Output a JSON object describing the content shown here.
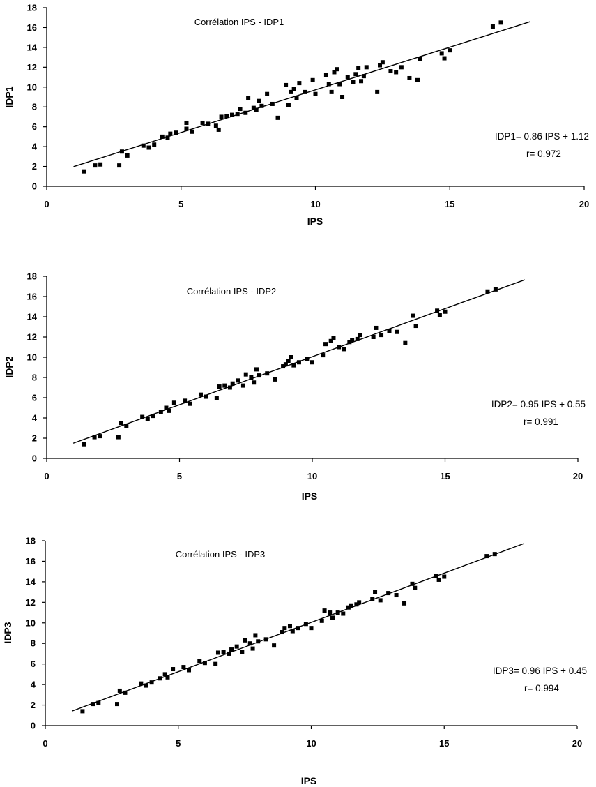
{
  "chart_data": [
    {
      "type": "scatter",
      "title": "Corrélation IPS - IDP1",
      "xlabel": "IPS",
      "ylabel": "IDP1",
      "xlim": [
        0,
        20
      ],
      "ylim": [
        0,
        18
      ],
      "xticks": [
        "0",
        "5",
        "10",
        "15",
        "20"
      ],
      "yticks": [
        "0",
        "2",
        "4",
        "6",
        "8",
        "10",
        "12",
        "14",
        "16",
        "18"
      ],
      "equation": "IDP1= 0.86 IPS + 1.12",
      "r_label": "r= 0.972",
      "fit": {
        "slope": 0.86,
        "intercept": 1.12,
        "x_range": [
          1,
          18
        ]
      },
      "points": [
        [
          1.4,
          1.5
        ],
        [
          1.8,
          2.1
        ],
        [
          2.0,
          2.2
        ],
        [
          2.7,
          2.1
        ],
        [
          2.8,
          3.5
        ],
        [
          3.0,
          3.1
        ],
        [
          3.6,
          4.1
        ],
        [
          3.8,
          3.9
        ],
        [
          4.0,
          4.2
        ],
        [
          4.3,
          5.0
        ],
        [
          4.5,
          4.9
        ],
        [
          4.6,
          5.3
        ],
        [
          4.8,
          5.4
        ],
        [
          5.2,
          6.4
        ],
        [
          5.2,
          5.8
        ],
        [
          5.4,
          5.5
        ],
        [
          5.8,
          6.4
        ],
        [
          6.0,
          6.3
        ],
        [
          6.3,
          6.1
        ],
        [
          6.4,
          5.7
        ],
        [
          6.5,
          7.0
        ],
        [
          6.7,
          7.1
        ],
        [
          6.9,
          7.2
        ],
        [
          7.1,
          7.3
        ],
        [
          7.2,
          7.8
        ],
        [
          7.4,
          7.4
        ],
        [
          7.5,
          8.9
        ],
        [
          7.7,
          7.9
        ],
        [
          7.8,
          7.7
        ],
        [
          7.9,
          8.6
        ],
        [
          8.0,
          8.1
        ],
        [
          8.2,
          9.3
        ],
        [
          8.4,
          8.3
        ],
        [
          8.6,
          6.9
        ],
        [
          8.9,
          10.2
        ],
        [
          9.0,
          8.2
        ],
        [
          9.1,
          9.5
        ],
        [
          9.2,
          9.8
        ],
        [
          9.3,
          8.9
        ],
        [
          9.4,
          10.4
        ],
        [
          9.6,
          9.5
        ],
        [
          9.9,
          10.7
        ],
        [
          10.0,
          9.3
        ],
        [
          10.4,
          11.2
        ],
        [
          10.5,
          10.3
        ],
        [
          10.6,
          9.5
        ],
        [
          10.7,
          11.5
        ],
        [
          10.8,
          11.8
        ],
        [
          10.9,
          10.3
        ],
        [
          11.0,
          9.0
        ],
        [
          11.2,
          11.0
        ],
        [
          11.4,
          10.5
        ],
        [
          11.5,
          11.3
        ],
        [
          11.6,
          11.9
        ],
        [
          11.7,
          10.6
        ],
        [
          11.8,
          11.1
        ],
        [
          11.9,
          12.0
        ],
        [
          12.3,
          9.5
        ],
        [
          12.4,
          12.2
        ],
        [
          12.5,
          12.5
        ],
        [
          12.8,
          11.6
        ],
        [
          13.0,
          11.5
        ],
        [
          13.2,
          12.0
        ],
        [
          13.5,
          10.9
        ],
        [
          13.8,
          10.7
        ],
        [
          13.9,
          12.8
        ],
        [
          14.7,
          13.4
        ],
        [
          14.8,
          12.9
        ],
        [
          15.0,
          13.7
        ],
        [
          16.6,
          16.1
        ],
        [
          16.9,
          16.5
        ]
      ]
    },
    {
      "type": "scatter",
      "title": "Corrélation IPS - IDP2",
      "xlabel": "IPS",
      "ylabel": "IDP2",
      "xlim": [
        0,
        20
      ],
      "ylim": [
        0,
        18
      ],
      "xticks": [
        "0",
        "5",
        "10",
        "15",
        "20"
      ],
      "yticks": [
        "0",
        "2",
        "4",
        "6",
        "8",
        "10",
        "12",
        "14",
        "16",
        "18"
      ],
      "equation": "IDP2= 0.95 IPS + 0.55",
      "r_label": "r= 0.991",
      "fit": {
        "slope": 0.95,
        "intercept": 0.55,
        "x_range": [
          1,
          18
        ]
      },
      "points": [
        [
          1.4,
          1.4
        ],
        [
          1.8,
          2.1
        ],
        [
          2.0,
          2.2
        ],
        [
          2.7,
          2.1
        ],
        [
          2.8,
          3.5
        ],
        [
          3.0,
          3.2
        ],
        [
          3.6,
          4.1
        ],
        [
          3.8,
          3.9
        ],
        [
          4.0,
          4.2
        ],
        [
          4.3,
          4.6
        ],
        [
          4.5,
          5.0
        ],
        [
          4.6,
          4.7
        ],
        [
          4.8,
          5.5
        ],
        [
          5.2,
          5.7
        ],
        [
          5.4,
          5.4
        ],
        [
          5.8,
          6.3
        ],
        [
          6.0,
          6.1
        ],
        [
          6.4,
          6.0
        ],
        [
          6.5,
          7.1
        ],
        [
          6.7,
          7.2
        ],
        [
          6.9,
          7.0
        ],
        [
          7.0,
          7.4
        ],
        [
          7.2,
          7.7
        ],
        [
          7.4,
          7.2
        ],
        [
          7.5,
          8.3
        ],
        [
          7.7,
          8.0
        ],
        [
          7.8,
          7.5
        ],
        [
          7.9,
          8.8
        ],
        [
          8.0,
          8.2
        ],
        [
          8.3,
          8.4
        ],
        [
          8.6,
          7.8
        ],
        [
          8.9,
          9.1
        ],
        [
          9.0,
          9.3
        ],
        [
          9.1,
          9.6
        ],
        [
          9.2,
          10.0
        ],
        [
          9.3,
          9.2
        ],
        [
          9.5,
          9.5
        ],
        [
          9.8,
          9.8
        ],
        [
          10.0,
          9.5
        ],
        [
          10.4,
          10.2
        ],
        [
          10.5,
          11.3
        ],
        [
          10.7,
          11.6
        ],
        [
          10.8,
          11.9
        ],
        [
          11.0,
          11.0
        ],
        [
          11.2,
          10.8
        ],
        [
          11.4,
          11.5
        ],
        [
          11.5,
          11.7
        ],
        [
          11.7,
          11.8
        ],
        [
          11.8,
          12.2
        ],
        [
          12.3,
          12.0
        ],
        [
          12.4,
          12.9
        ],
        [
          12.6,
          12.2
        ],
        [
          12.9,
          12.6
        ],
        [
          13.2,
          12.5
        ],
        [
          13.5,
          11.4
        ],
        [
          13.8,
          14.1
        ],
        [
          13.9,
          13.1
        ],
        [
          14.7,
          14.6
        ],
        [
          14.8,
          14.2
        ],
        [
          15.0,
          14.5
        ],
        [
          16.6,
          16.5
        ],
        [
          16.9,
          16.7
        ]
      ]
    },
    {
      "type": "scatter",
      "title": "Corrélation IPS - IDP3",
      "xlabel": "IPS",
      "ylabel": "IDP3",
      "xlim": [
        0,
        20
      ],
      "ylim": [
        0,
        18
      ],
      "xticks": [
        "0",
        "5",
        "10",
        "15",
        "20"
      ],
      "yticks": [
        "0",
        "2",
        "4",
        "6",
        "8",
        "10",
        "12",
        "14",
        "16",
        "18"
      ],
      "equation": "IDP3= 0.96 IPS + 0.45",
      "r_label": "r= 0.994",
      "fit": {
        "slope": 0.96,
        "intercept": 0.45,
        "x_range": [
          1,
          18
        ]
      },
      "points": [
        [
          1.4,
          1.4
        ],
        [
          1.8,
          2.1
        ],
        [
          2.0,
          2.2
        ],
        [
          2.7,
          2.1
        ],
        [
          2.8,
          3.4
        ],
        [
          3.0,
          3.2
        ],
        [
          3.6,
          4.1
        ],
        [
          3.8,
          3.9
        ],
        [
          4.0,
          4.2
        ],
        [
          4.3,
          4.6
        ],
        [
          4.5,
          5.0
        ],
        [
          4.6,
          4.7
        ],
        [
          4.8,
          5.5
        ],
        [
          5.2,
          5.7
        ],
        [
          5.4,
          5.4
        ],
        [
          5.8,
          6.3
        ],
        [
          6.0,
          6.1
        ],
        [
          6.4,
          6.0
        ],
        [
          6.5,
          7.1
        ],
        [
          6.7,
          7.2
        ],
        [
          6.9,
          7.0
        ],
        [
          7.0,
          7.4
        ],
        [
          7.2,
          7.7
        ],
        [
          7.4,
          7.2
        ],
        [
          7.5,
          8.3
        ],
        [
          7.7,
          8.0
        ],
        [
          7.8,
          7.5
        ],
        [
          7.9,
          8.8
        ],
        [
          8.0,
          8.2
        ],
        [
          8.3,
          8.4
        ],
        [
          8.6,
          7.8
        ],
        [
          8.9,
          9.1
        ],
        [
          9.0,
          9.5
        ],
        [
          9.2,
          9.7
        ],
        [
          9.3,
          9.2
        ],
        [
          9.5,
          9.5
        ],
        [
          9.8,
          9.9
        ],
        [
          10.0,
          9.5
        ],
        [
          10.4,
          10.2
        ],
        [
          10.5,
          11.2
        ],
        [
          10.7,
          11.0
        ],
        [
          10.8,
          10.5
        ],
        [
          11.0,
          11.0
        ],
        [
          11.2,
          10.9
        ],
        [
          11.4,
          11.5
        ],
        [
          11.5,
          11.7
        ],
        [
          11.7,
          11.8
        ],
        [
          11.8,
          12.0
        ],
        [
          12.3,
          12.3
        ],
        [
          12.4,
          13.0
        ],
        [
          12.6,
          12.2
        ],
        [
          12.9,
          12.9
        ],
        [
          13.2,
          12.7
        ],
        [
          13.5,
          11.9
        ],
        [
          13.8,
          13.8
        ],
        [
          13.9,
          13.4
        ],
        [
          14.7,
          14.6
        ],
        [
          14.8,
          14.2
        ],
        [
          15.0,
          14.5
        ],
        [
          16.6,
          16.5
        ],
        [
          16.9,
          16.7
        ]
      ]
    }
  ]
}
